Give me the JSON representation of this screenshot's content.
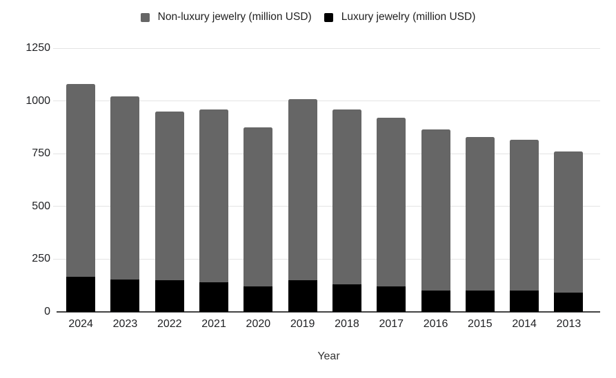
{
  "chart_data": {
    "type": "bar",
    "stacked": true,
    "categories": [
      "2024",
      "2023",
      "2022",
      "2021",
      "2020",
      "2019",
      "2018",
      "2017",
      "2016",
      "2015",
      "2014",
      "2013"
    ],
    "series": [
      {
        "name": "Non-luxury jewelry (million USD)",
        "color": "#666666",
        "values": [
          915,
          865,
          800,
          820,
          755,
          860,
          830,
          800,
          765,
          730,
          715,
          670
        ]
      },
      {
        "name": "Luxury jewelry (million USD)",
        "color": "#000000",
        "values": [
          165,
          155,
          150,
          140,
          120,
          150,
          130,
          120,
          100,
          100,
          100,
          90
        ]
      }
    ],
    "stack_order_bottom_to_top": [
      "Luxury jewelry (million USD)",
      "Non-luxury jewelry (million USD)"
    ],
    "totals": [
      1080,
      1020,
      950,
      960,
      875,
      1010,
      960,
      920,
      865,
      830,
      815,
      760
    ],
    "xlabel": "Year",
    "ylabel": "",
    "ylim": [
      0,
      1250
    ],
    "yticks": [
      0,
      250,
      500,
      750,
      1000,
      1250
    ],
    "grid": true,
    "legend_position": "top",
    "colors": {
      "gridline": "#e3e3e3",
      "axis_line": "#424242",
      "tick_text": "#202124",
      "legend_text": "#212121",
      "background": "#ffffff"
    }
  }
}
